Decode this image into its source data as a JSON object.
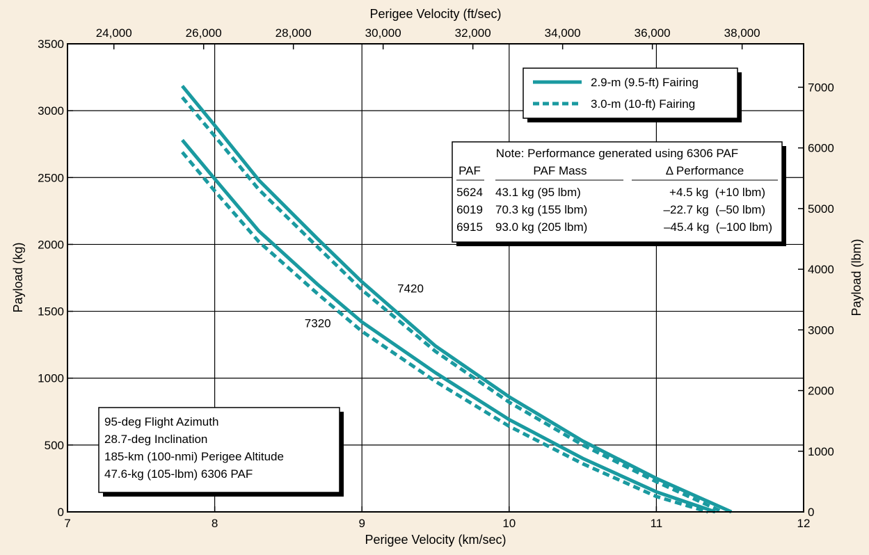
{
  "chart_data": {
    "type": "line",
    "xlabel": "Perigee Velocity (km/sec)",
    "ylabel": "Payload (kg)",
    "x2label": "Perigee Velocity (ft/sec)",
    "y2label": "Payload (lbm)",
    "xlim": [
      7,
      12
    ],
    "ylim": [
      0,
      3500
    ],
    "x2lim_ftsec": [
      22966,
      39370
    ],
    "y2lim_lbm": [
      0,
      7716
    ],
    "xticks": [
      "7",
      "8",
      "9",
      "10",
      "11",
      "12"
    ],
    "yticks": [
      "0",
      "500",
      "1000",
      "1500",
      "2000",
      "2500",
      "3000",
      "3500"
    ],
    "x2ticks": [
      "24,000",
      "26,000",
      "28,000",
      "30,000",
      "32,000",
      "34,000",
      "36,000",
      "38,000"
    ],
    "y2ticks": [
      "0",
      "1000",
      "2000",
      "3000",
      "4000",
      "5000",
      "6000",
      "7000"
    ],
    "grid": true,
    "colors": {
      "series": "#1a9aa0",
      "plot_bg": "#ffffff",
      "page_bg": "#f8eedf"
    },
    "series": [
      {
        "vehicle": "7420",
        "fairing": "2.9-m (9.5-ft) Fairing",
        "style": "solid",
        "x": [
          7.78,
          8.0,
          8.3,
          8.7,
          9.0,
          9.5,
          10.0,
          10.5,
          11.0,
          11.51
        ],
        "y": [
          3185,
          2890,
          2480,
          2040,
          1720,
          1240,
          860,
          530,
          250,
          0
        ]
      },
      {
        "vehicle": "7420",
        "fairing": "3.0-m (10-ft) Fairing",
        "style": "dashed",
        "x": [
          7.78,
          8.0,
          8.3,
          8.7,
          9.0,
          9.5,
          10.0,
          10.5,
          11.0,
          11.45
        ],
        "y": [
          3100,
          2810,
          2410,
          1980,
          1660,
          1200,
          820,
          500,
          225,
          0
        ]
      },
      {
        "vehicle": "7320",
        "fairing": "2.9-m (9.5-ft) Fairing",
        "style": "solid",
        "x": [
          7.78,
          8.0,
          8.3,
          8.7,
          9.0,
          9.5,
          10.0,
          10.5,
          11.0,
          11.4
        ],
        "y": [
          2780,
          2490,
          2100,
          1700,
          1420,
          1040,
          690,
          400,
          150,
          0
        ]
      },
      {
        "vehicle": "7320",
        "fairing": "3.0-m (10-ft) Fairing",
        "style": "dashed",
        "x": [
          7.78,
          8.0,
          8.3,
          8.7,
          9.0,
          9.5,
          10.0,
          10.5,
          11.0,
          11.35
        ],
        "y": [
          2690,
          2400,
          2020,
          1630,
          1350,
          975,
          640,
          360,
          115,
          0
        ]
      }
    ],
    "legend": [
      {
        "label": "2.9-m (9.5-ft) Fairing",
        "style": "solid"
      },
      {
        "label": "3.0-m (10-ft) Fairing",
        "style": "dashed"
      }
    ],
    "legend_position": "top-right",
    "curve_labels": [
      {
        "text": "7420",
        "x": 9.33,
        "y": 1640
      },
      {
        "text": "7320",
        "x": 8.7,
        "y": 1380
      }
    ],
    "paf_table": {
      "title": "Note: Performance generated using 6306 PAF",
      "headers": [
        "PAF",
        "PAF Mass",
        "Δ Performance"
      ],
      "rows": [
        [
          "5624",
          "43.1 kg (95 lbm)",
          "+4.5 kg  (+10 lbm)"
        ],
        [
          "6019",
          "70.3 kg (155 lbm)",
          "–22.7 kg  (–50 lbm)"
        ],
        [
          "6915",
          "93.0 kg (205 lbm)",
          "–45.4 kg  (–100 lbm)"
        ]
      ]
    },
    "conditions": [
      "95-deg Flight Azimuth",
      "28.7-deg Inclination",
      "185-km (100-nmi) Perigee Altitude",
      "47.6-kg (105-lbm) 6306 PAF"
    ]
  }
}
